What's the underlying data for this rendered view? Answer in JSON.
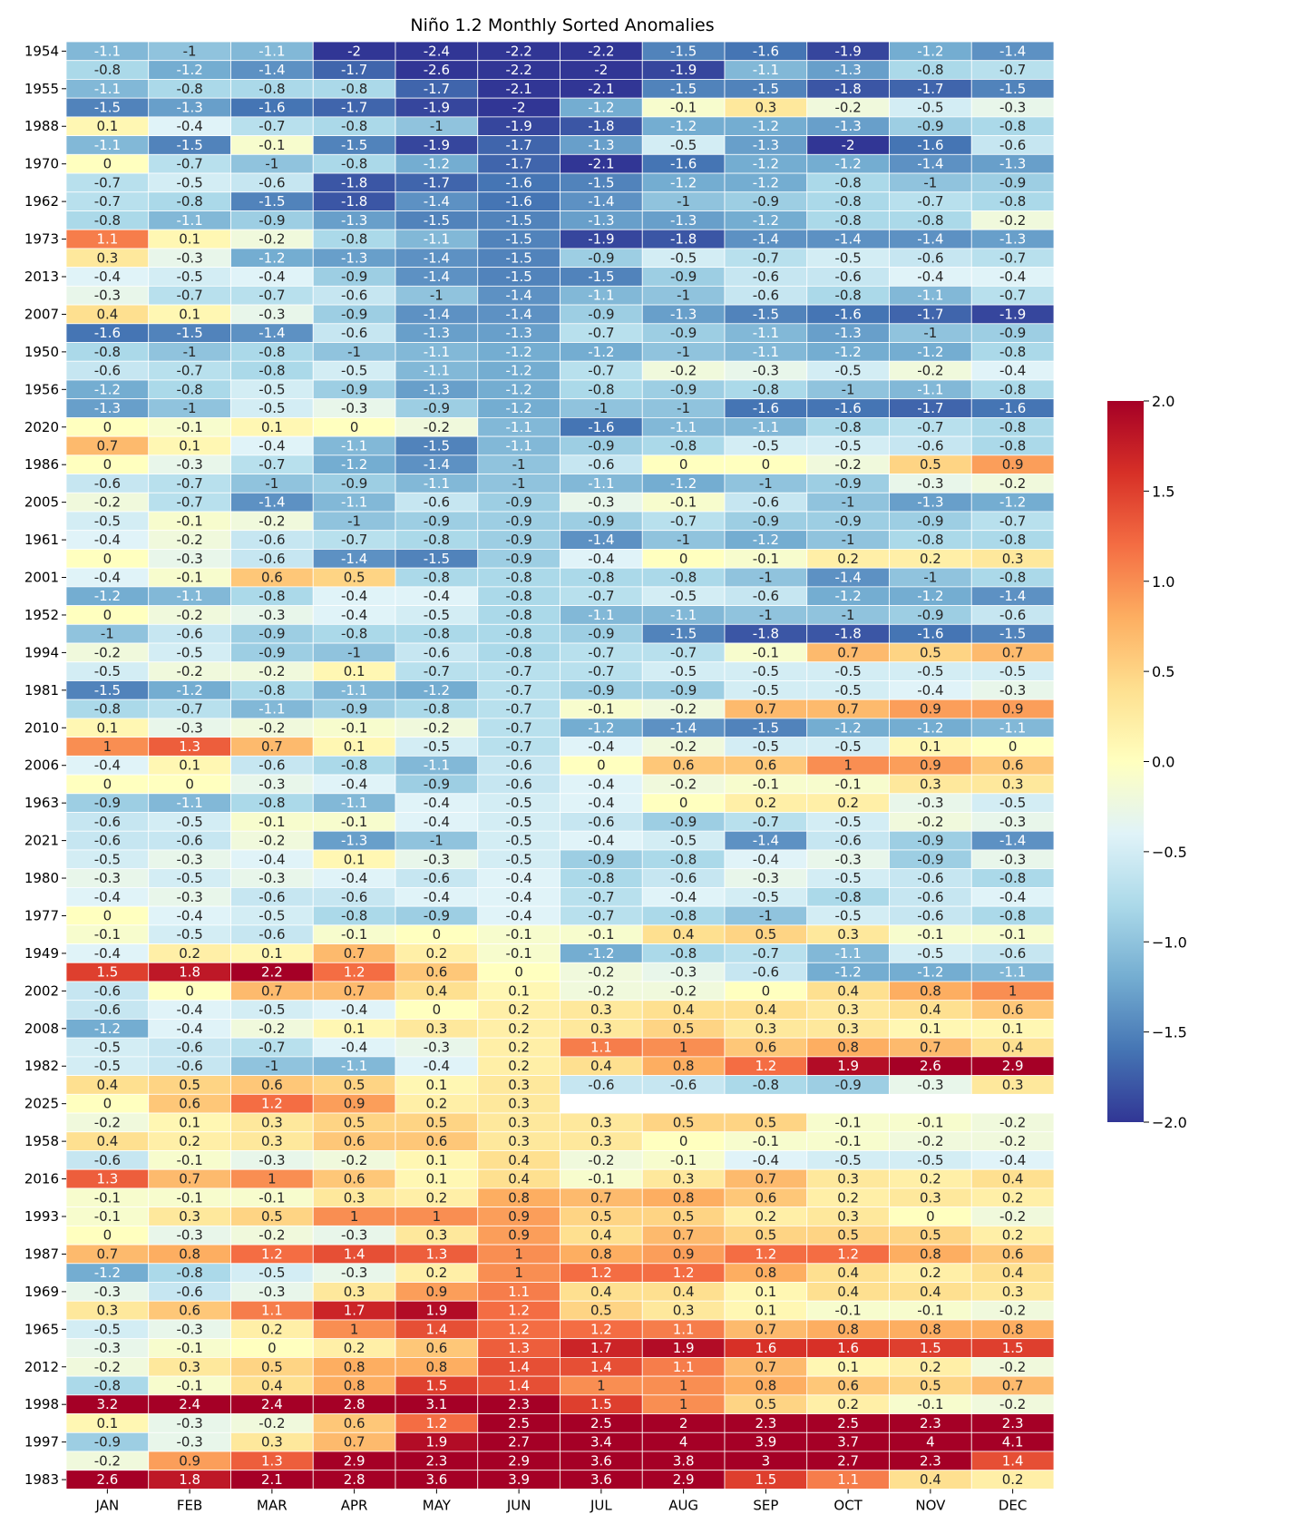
{
  "chart_data": {
    "type": "heatmap",
    "title": "Niño 1.2 Monthly Sorted Anomalies",
    "xlabel": "",
    "ylabel": "",
    "months": [
      "JAN",
      "FEB",
      "MAR",
      "APR",
      "MAY",
      "JUN",
      "JUL",
      "AUG",
      "SEP",
      "OCT",
      "NOV",
      "DEC"
    ],
    "years": [
      "1954",
      "",
      "1955",
      "",
      "1988",
      "",
      "1970",
      "",
      "1962",
      "",
      "1973",
      "",
      "2013",
      "",
      "2007",
      "",
      "1950",
      "",
      "1956",
      "",
      "2020",
      "",
      "1986",
      "",
      "2005",
      "",
      "1961",
      "",
      "2001",
      "",
      "1952",
      "",
      "1994",
      "",
      "1981",
      "",
      "2010",
      "",
      "2006",
      "",
      "1963",
      "",
      "2021",
      "",
      "1980",
      "",
      "1977",
      "",
      "1949",
      "",
      "2002",
      "",
      "2008",
      "",
      "1982",
      "",
      "2025",
      "",
      "1958",
      "",
      "2016",
      "",
      "1993",
      "",
      "1987",
      "",
      "1969",
      "",
      "1965",
      "",
      "2012",
      "",
      "1998",
      "",
      "1997",
      "",
      "1983"
    ],
    "values": [
      [
        -1.1,
        -1,
        -1.1,
        -2,
        -2.4,
        -2.2,
        -2.2,
        -1.5,
        -1.6,
        -1.9,
        -1.2,
        -1.4
      ],
      [
        -0.8,
        -1.2,
        -1.4,
        -1.7,
        -2.6,
        -2.2,
        -2,
        -1.9,
        -1.1,
        -1.3,
        -0.8,
        -0.7
      ],
      [
        -1.1,
        -0.8,
        -0.8,
        -0.8,
        -1.7,
        -2.1,
        -2.1,
        -1.5,
        -1.5,
        -1.8,
        -1.7,
        -1.5
      ],
      [
        -1.5,
        -1.3,
        -1.6,
        -1.7,
        -1.9,
        -2,
        -1.2,
        -0.1,
        0.3,
        -0.2,
        -0.5,
        -0.3
      ],
      [
        0.1,
        -0.4,
        -0.7,
        -0.8,
        -1,
        -1.9,
        -1.8,
        -1.2,
        -1.2,
        -1.3,
        -0.9,
        -0.8
      ],
      [
        -1.1,
        -1.5,
        -0.1,
        -1.5,
        -1.9,
        -1.7,
        -1.3,
        -0.5,
        -1.3,
        -2,
        -1.6,
        -0.6
      ],
      [
        0,
        -0.7,
        -1,
        -0.8,
        -1.2,
        -1.7,
        -2.1,
        -1.6,
        -1.2,
        -1.2,
        -1.4,
        -1.3
      ],
      [
        -0.7,
        -0.5,
        -0.6,
        -1.8,
        -1.7,
        -1.6,
        -1.5,
        -1.2,
        -1.2,
        -0.8,
        -1,
        -0.9
      ],
      [
        -0.7,
        -0.8,
        -1.5,
        -1.8,
        -1.4,
        -1.6,
        -1.4,
        -1,
        -0.9,
        -0.8,
        -0.7,
        -0.8
      ],
      [
        -0.8,
        -1.1,
        -0.9,
        -1.3,
        -1.5,
        -1.5,
        -1.3,
        -1.3,
        -1.2,
        -0.8,
        -0.8,
        -0.2
      ],
      [
        1.1,
        0.1,
        -0.2,
        -0.8,
        -1.1,
        -1.5,
        -1.9,
        -1.8,
        -1.4,
        -1.4,
        -1.4,
        -1.3
      ],
      [
        0.3,
        -0.3,
        -1.2,
        -1.3,
        -1.4,
        -1.5,
        -0.9,
        -0.5,
        -0.7,
        -0.5,
        -0.6,
        -0.7
      ],
      [
        -0.4,
        -0.5,
        -0.4,
        -0.9,
        -1.4,
        -1.5,
        -1.5,
        -0.9,
        -0.6,
        -0.6,
        -0.4,
        -0.4
      ],
      [
        -0.3,
        -0.7,
        -0.7,
        -0.6,
        -1,
        -1.4,
        -1.1,
        -1,
        -0.6,
        -0.8,
        -1.1,
        -0.7
      ],
      [
        0.4,
        0.1,
        -0.3,
        -0.9,
        -1.4,
        -1.4,
        -0.9,
        -1.3,
        -1.5,
        -1.6,
        -1.7,
        -1.9
      ],
      [
        -1.6,
        -1.5,
        -1.4,
        -0.6,
        -1.3,
        -1.3,
        -0.7,
        -0.9,
        -1.1,
        -1.3,
        -1,
        -0.9
      ],
      [
        -0.8,
        -1,
        -0.8,
        -1,
        -1.1,
        -1.2,
        -1.2,
        -1,
        -1.1,
        -1.2,
        -1.2,
        -0.8
      ],
      [
        -0.6,
        -0.7,
        -0.8,
        -0.5,
        -1.1,
        -1.2,
        -0.7,
        -0.2,
        -0.3,
        -0.5,
        -0.2,
        -0.4
      ],
      [
        -1.2,
        -0.8,
        -0.5,
        -0.9,
        -1.3,
        -1.2,
        -0.8,
        -0.9,
        -0.8,
        -1,
        -1.1,
        -0.8
      ],
      [
        -1.3,
        -1,
        -0.5,
        -0.3,
        -0.9,
        -1.2,
        -1,
        -1,
        -1.6,
        -1.6,
        -1.7,
        -1.6
      ],
      [
        0,
        -0.1,
        0.1,
        0,
        -0.2,
        -1.1,
        -1.6,
        -1.1,
        -1.1,
        -0.8,
        -0.7,
        -0.8
      ],
      [
        0.7,
        0.1,
        -0.4,
        -1.1,
        -1.5,
        -1.1,
        -0.9,
        -0.8,
        -0.5,
        -0.5,
        -0.6,
        -0.8
      ],
      [
        0,
        -0.3,
        -0.7,
        -1.2,
        -1.4,
        -1,
        -0.6,
        0,
        0,
        -0.2,
        0.5,
        0.9
      ],
      [
        -0.6,
        -0.7,
        -1,
        -0.9,
        -1.1,
        -1,
        -1.1,
        -1.2,
        -1,
        -0.9,
        -0.3,
        -0.2
      ],
      [
        -0.2,
        -0.7,
        -1.4,
        -1.1,
        -0.6,
        -0.9,
        -0.3,
        -0.1,
        -0.6,
        -1,
        -1.3,
        -1.2
      ],
      [
        -0.5,
        -0.1,
        -0.2,
        -1,
        -0.9,
        -0.9,
        -0.9,
        -0.7,
        -0.9,
        -0.9,
        -0.9,
        -0.7
      ],
      [
        -0.4,
        -0.2,
        -0.6,
        -0.7,
        -0.8,
        -0.9,
        -1.4,
        -1,
        -1.2,
        -1,
        -0.8,
        -0.8
      ],
      [
        0,
        -0.3,
        -0.6,
        -1.4,
        -1.5,
        -0.9,
        -0.4,
        0,
        -0.1,
        0.2,
        0.2,
        0.3
      ],
      [
        -0.4,
        -0.1,
        0.6,
        0.5,
        -0.8,
        -0.8,
        -0.8,
        -0.8,
        -1,
        -1.4,
        -1,
        -0.8
      ],
      [
        -1.2,
        -1.1,
        -0.8,
        -0.4,
        -0.4,
        -0.8,
        -0.7,
        -0.5,
        -0.6,
        -1.2,
        -1.2,
        -1.4
      ],
      [
        0,
        -0.2,
        -0.3,
        -0.4,
        -0.5,
        -0.8,
        -1.1,
        -1.1,
        -1,
        -1,
        -0.9,
        -0.6
      ],
      [
        -1,
        -0.6,
        -0.9,
        -0.8,
        -0.8,
        -0.8,
        -0.9,
        -1.5,
        -1.8,
        -1.8,
        -1.6,
        -1.5
      ],
      [
        -0.2,
        -0.5,
        -0.9,
        -1,
        -0.6,
        -0.8,
        -0.7,
        -0.7,
        -0.1,
        0.7,
        0.5,
        0.7
      ],
      [
        -0.5,
        -0.2,
        -0.2,
        0.1,
        -0.7,
        -0.7,
        -0.7,
        -0.5,
        -0.5,
        -0.5,
        -0.5,
        -0.5
      ],
      [
        -1.5,
        -1.2,
        -0.8,
        -1.1,
        -1.2,
        -0.7,
        -0.9,
        -0.9,
        -0.5,
        -0.5,
        -0.4,
        -0.3
      ],
      [
        -0.8,
        -0.7,
        -1.1,
        -0.9,
        -0.8,
        -0.7,
        -0.1,
        -0.2,
        0.7,
        0.7,
        0.9,
        0.9
      ],
      [
        0.1,
        -0.3,
        -0.2,
        -0.1,
        -0.2,
        -0.7,
        -1.2,
        -1.4,
        -1.5,
        -1.2,
        -1.2,
        -1.1
      ],
      [
        1,
        1.3,
        0.7,
        0.1,
        -0.5,
        -0.7,
        -0.4,
        -0.2,
        -0.5,
        -0.5,
        0.1,
        0
      ],
      [
        -0.4,
        0.1,
        -0.6,
        -0.8,
        -1.1,
        -0.6,
        0,
        0.6,
        0.6,
        1,
        0.9,
        0.6
      ],
      [
        0,
        0,
        -0.3,
        -0.4,
        -0.9,
        -0.6,
        -0.4,
        -0.2,
        -0.1,
        -0.1,
        0.3,
        0.3
      ],
      [
        -0.9,
        -1.1,
        -0.8,
        -1.1,
        -0.4,
        -0.5,
        -0.4,
        0,
        0.2,
        0.2,
        -0.3,
        -0.5
      ],
      [
        -0.6,
        -0.5,
        -0.1,
        -0.1,
        -0.4,
        -0.5,
        -0.6,
        -0.9,
        -0.7,
        -0.5,
        -0.2,
        -0.3
      ],
      [
        -0.6,
        -0.6,
        -0.2,
        -1.3,
        -1,
        -0.5,
        -0.4,
        -0.5,
        -1.4,
        -0.6,
        -0.9,
        -1.4
      ],
      [
        -0.5,
        -0.3,
        -0.4,
        0.1,
        -0.3,
        -0.5,
        -0.9,
        -0.8,
        -0.4,
        -0.3,
        -0.9,
        -0.3
      ],
      [
        -0.3,
        -0.5,
        -0.3,
        -0.4,
        -0.6,
        -0.4,
        -0.8,
        -0.6,
        -0.3,
        -0.5,
        -0.6,
        -0.8
      ],
      [
        -0.4,
        -0.3,
        -0.6,
        -0.6,
        -0.4,
        -0.4,
        -0.7,
        -0.4,
        -0.5,
        -0.8,
        -0.6,
        -0.4
      ],
      [
        0,
        -0.4,
        -0.5,
        -0.8,
        -0.9,
        -0.4,
        -0.7,
        -0.8,
        -1,
        -0.5,
        -0.6,
        -0.8
      ],
      [
        -0.1,
        -0.5,
        -0.6,
        -0.1,
        0,
        -0.1,
        -0.1,
        0.4,
        0.5,
        0.3,
        -0.1,
        -0.1
      ],
      [
        -0.4,
        0.2,
        0.1,
        0.7,
        0.2,
        -0.1,
        -1.2,
        -0.8,
        -0.7,
        -1.1,
        -0.5,
        -0.6
      ],
      [
        1.5,
        1.8,
        2.2,
        1.2,
        0.6,
        0,
        -0.2,
        -0.3,
        -0.6,
        -1.2,
        -1.2,
        -1.1
      ],
      [
        -0.6,
        0,
        0.7,
        0.7,
        0.4,
        0.1,
        -0.2,
        -0.2,
        0,
        0.4,
        0.8,
        1
      ],
      [
        -0.6,
        -0.4,
        -0.5,
        -0.4,
        0,
        0.2,
        0.3,
        0.4,
        0.4,
        0.3,
        0.4,
        0.6
      ],
      [
        -1.2,
        -0.4,
        -0.2,
        0.1,
        0.3,
        0.2,
        0.3,
        0.5,
        0.3,
        0.3,
        0.1,
        0.1
      ],
      [
        -0.5,
        -0.6,
        -0.7,
        -0.4,
        -0.3,
        0.2,
        1.1,
        1,
        0.6,
        0.8,
        0.7,
        0.4
      ],
      [
        -0.5,
        -0.6,
        -1,
        -1.1,
        -0.4,
        0.2,
        0.4,
        0.8,
        1.2,
        1.9,
        2.6,
        2.9
      ],
      [
        0.4,
        0.5,
        0.6,
        0.5,
        0.1,
        0.3,
        -0.6,
        -0.6,
        -0.8,
        -0.9,
        -0.3,
        0.3
      ],
      [
        0,
        0.6,
        1.2,
        0.9,
        0.2,
        0.3,
        null,
        null,
        null,
        null,
        null,
        null
      ],
      [
        -0.2,
        0.1,
        0.3,
        0.5,
        0.5,
        0.3,
        0.3,
        0.5,
        0.5,
        -0.1,
        -0.1,
        -0.2
      ],
      [
        0.4,
        0.2,
        0.3,
        0.6,
        0.6,
        0.3,
        0.3,
        0,
        -0.1,
        -0.1,
        -0.2,
        -0.2
      ],
      [
        -0.6,
        -0.1,
        -0.3,
        -0.2,
        0.1,
        0.4,
        -0.2,
        -0.1,
        -0.4,
        -0.5,
        -0.5,
        -0.4
      ],
      [
        1.3,
        0.7,
        1,
        0.6,
        0.1,
        0.4,
        -0.1,
        0.3,
        0.7,
        0.3,
        0.2,
        0.4
      ],
      [
        -0.1,
        -0.1,
        -0.1,
        0.3,
        0.2,
        0.8,
        0.7,
        0.8,
        0.6,
        0.2,
        0.3,
        0.2
      ],
      [
        -0.1,
        0.3,
        0.5,
        1,
        1,
        0.9,
        0.5,
        0.5,
        0.2,
        0.3,
        0,
        -0.2
      ],
      [
        0,
        -0.3,
        -0.2,
        -0.3,
        0.3,
        0.9,
        0.4,
        0.7,
        0.5,
        0.5,
        0.5,
        0.2
      ],
      [
        0.7,
        0.8,
        1.2,
        1.4,
        1.3,
        1,
        0.8,
        0.9,
        1.2,
        1.2,
        0.8,
        0.6
      ],
      [
        -1.2,
        -0.8,
        -0.5,
        -0.3,
        0.2,
        1,
        1.2,
        1.2,
        0.8,
        0.4,
        0.2,
        0.4
      ],
      [
        -0.3,
        -0.6,
        -0.3,
        0.3,
        0.9,
        1.1,
        0.4,
        0.4,
        0.1,
        0.4,
        0.4,
        0.3
      ],
      [
        0.3,
        0.6,
        1.1,
        1.7,
        1.9,
        1.2,
        0.5,
        0.3,
        0.1,
        -0.1,
        -0.1,
        -0.2
      ],
      [
        -0.5,
        -0.3,
        0.2,
        1,
        1.4,
        1.2,
        1.2,
        1.1,
        0.7,
        0.8,
        0.8,
        0.8
      ],
      [
        -0.3,
        -0.1,
        0,
        0.2,
        0.6,
        1.3,
        1.7,
        1.9,
        1.6,
        1.6,
        1.5,
        1.5
      ],
      [
        -0.2,
        0.3,
        0.5,
        0.8,
        0.8,
        1.4,
        1.4,
        1.1,
        0.7,
        0.1,
        0.2,
        -0.2
      ],
      [
        -0.8,
        -0.1,
        0.4,
        0.8,
        1.5,
        1.4,
        1,
        1,
        0.8,
        0.6,
        0.5,
        0.7
      ],
      [
        3.2,
        2.4,
        2.4,
        2.8,
        3.1,
        2.3,
        1.5,
        1,
        0.5,
        0.2,
        -0.1,
        -0.2
      ],
      [
        0.1,
        -0.3,
        -0.2,
        0.6,
        1.2,
        2.5,
        2.5,
        2,
        2.3,
        2.5,
        2.3,
        2.3
      ],
      [
        -0.9,
        -0.3,
        0.3,
        0.7,
        1.9,
        2.7,
        3.4,
        4,
        3.9,
        3.7,
        4,
        4.1
      ],
      [
        -0.2,
        0.9,
        1.3,
        2.9,
        2.3,
        2.9,
        3.6,
        3.8,
        3,
        2.7,
        2.3,
        1.4
      ],
      [
        2.6,
        1.8,
        2.1,
        2.8,
        3.6,
        3.9,
        3.6,
        2.9,
        1.5,
        1.1,
        0.4,
        0.2
      ]
    ],
    "colorbar": {
      "range": [
        -2.0,
        2.0
      ],
      "ticks": [
        "2.0",
        "1.5",
        "1.0",
        "0.5",
        "0.0",
        "−0.5",
        "−1.0",
        "−1.5",
        "−2.0"
      ],
      "colormap": "RdYlBu_r"
    }
  }
}
